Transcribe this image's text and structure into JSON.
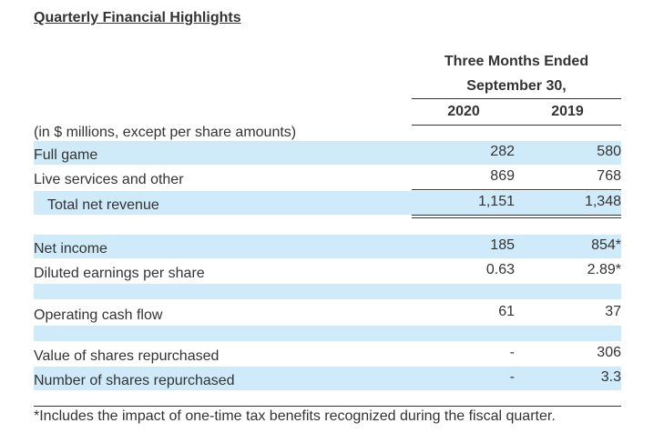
{
  "title": "Quarterly Financial Highlights",
  "header": {
    "line1": "Three Months Ended",
    "line2": "September 30,",
    "years": [
      "2020",
      "2019"
    ]
  },
  "units_note": "(in $ millions, except per share amounts)",
  "rows": [
    {
      "label": "Full game",
      "v2020": "282",
      "v2019": "580"
    },
    {
      "label": "Live services and other",
      "v2020": "869",
      "v2019": "768"
    },
    {
      "label": "Total net revenue",
      "v2020": "1,151",
      "v2019": "1,348"
    },
    {
      "label": "Net income",
      "v2020": "185",
      "v2019": "854*"
    },
    {
      "label": "Diluted earnings per share",
      "v2020": "0.63",
      "v2019": "2.89*"
    },
    {
      "label": "Operating cash flow",
      "v2020": "61",
      "v2019": "37"
    },
    {
      "label": "Value of shares repurchased",
      "v2020": "-",
      "v2019": "306"
    },
    {
      "label": "Number of shares repurchased",
      "v2020": "-",
      "v2019": "3.3"
    }
  ],
  "footnote": "*Includes the impact of one-time tax benefits recognized during the fiscal quarter."
}
